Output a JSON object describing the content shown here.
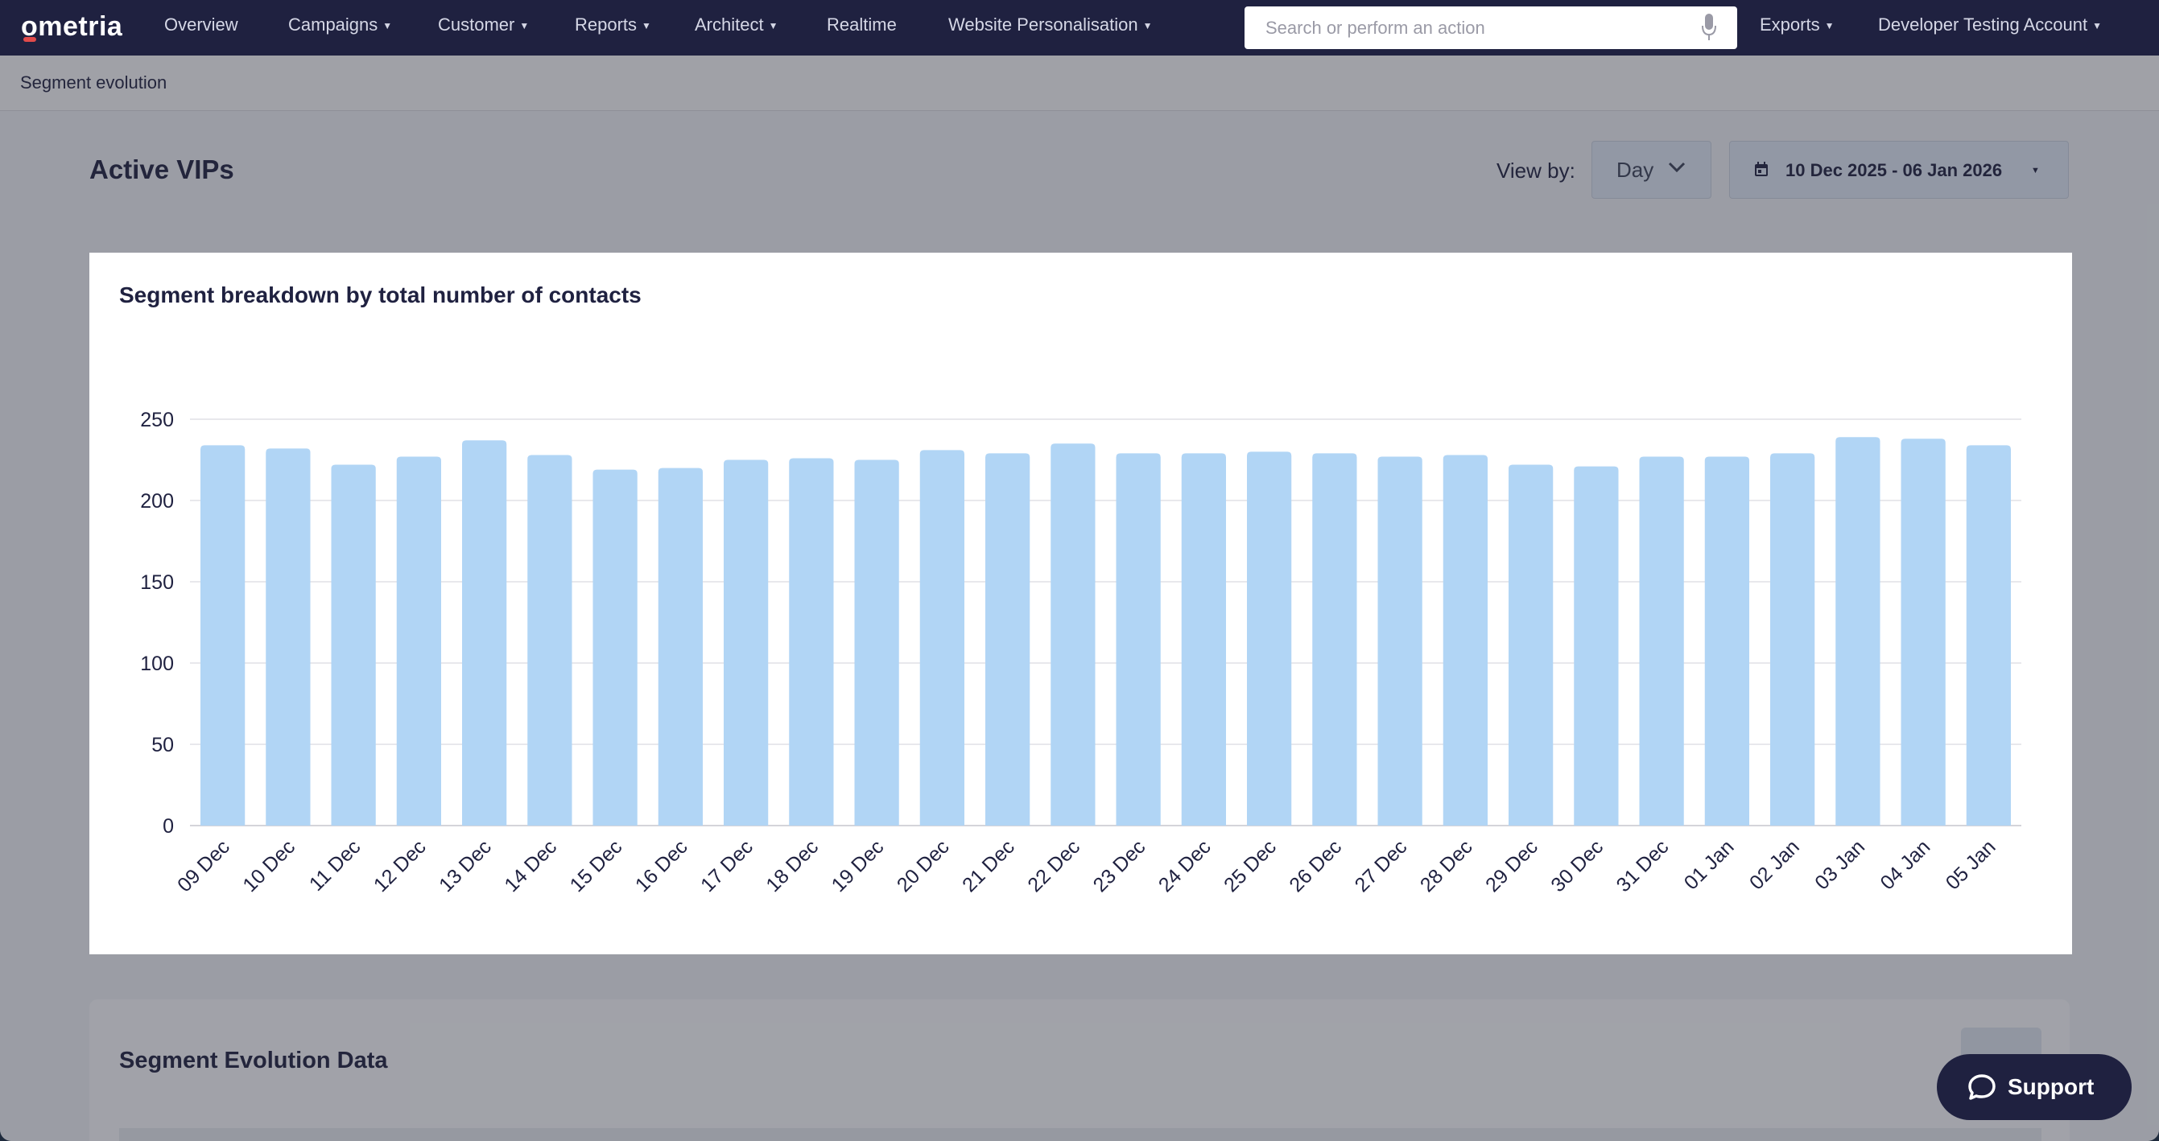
{
  "nav": {
    "logo": "ometria",
    "items": [
      {
        "label": "Overview",
        "has_caret": false
      },
      {
        "label": "Campaigns",
        "has_caret": true
      },
      {
        "label": "Customer",
        "has_caret": true
      },
      {
        "label": "Reports",
        "has_caret": true
      },
      {
        "label": "Architect",
        "has_caret": true
      },
      {
        "label": "Realtime",
        "has_caret": false
      },
      {
        "label": "Website Personalisation",
        "has_caret": true
      }
    ],
    "search_placeholder": "Search or perform an action",
    "exports_label": "Exports",
    "account_label": "Developer Testing Account"
  },
  "breadcrumb": "Segment evolution",
  "page": {
    "title": "Active VIPs",
    "view_by_label": "View by:",
    "view_by_value": "Day",
    "date_range": "10 Dec 2025 - 06 Jan 2026"
  },
  "chart_data": {
    "type": "bar",
    "title": "Segment breakdown by total number of contacts",
    "categories": [
      "09 Dec",
      "10 Dec",
      "11 Dec",
      "12 Dec",
      "13 Dec",
      "14 Dec",
      "15 Dec",
      "16 Dec",
      "17 Dec",
      "18 Dec",
      "19 Dec",
      "20 Dec",
      "21 Dec",
      "22 Dec",
      "23 Dec",
      "24 Dec",
      "25 Dec",
      "26 Dec",
      "27 Dec",
      "28 Dec",
      "29 Dec",
      "30 Dec",
      "31 Dec",
      "01 Jan",
      "02 Jan",
      "03 Jan",
      "04 Jan",
      "05 Jan"
    ],
    "values": [
      234,
      232,
      222,
      227,
      237,
      228,
      219,
      220,
      225,
      226,
      225,
      231,
      229,
      235,
      229,
      229,
      230,
      229,
      227,
      228,
      222,
      221,
      227,
      227,
      229,
      239,
      238,
      234
    ],
    "yticks": [
      "0",
      "50",
      "100",
      "150",
      "200",
      "250"
    ],
    "ylim": [
      0,
      250
    ],
    "grid": true,
    "bar_color": "#b1d5f5",
    "grid_color": "#e8e8ec"
  },
  "data_section": {
    "title": "Segment Evolution Data"
  },
  "support_label": "Support",
  "colors": {
    "nav_bg": "#1f2140",
    "accent_red": "#e24b4b"
  }
}
